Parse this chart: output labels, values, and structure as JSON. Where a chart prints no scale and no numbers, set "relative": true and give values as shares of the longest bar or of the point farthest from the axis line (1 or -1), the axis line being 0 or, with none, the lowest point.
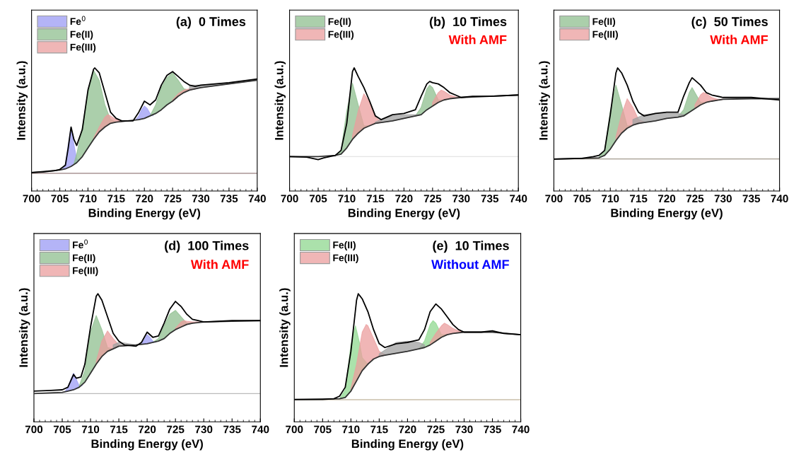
{
  "chart_data": [
    {
      "type": "area",
      "relative": true,
      "title": "(a)  0 Times",
      "xlabel": "Binding Energy (eV)",
      "ylabel": "Intensity (a.u.)",
      "xlim": [
        700,
        740
      ],
      "xticks": [
        700,
        705,
        710,
        715,
        720,
        725,
        730,
        735,
        740
      ],
      "tick_labels": "x",
      "legend": "top left",
      "ref_lines": [
        {
          "axis": "y",
          "value": 0.144,
          "color": "#806060"
        }
      ],
      "series": [
        {
          "type": "line",
          "color": "#333333",
          "x": [
            700,
            705,
            706,
            707,
            708,
            709,
            710,
            711,
            712,
            713,
            714,
            715,
            717,
            719,
            720,
            721,
            722,
            723,
            724,
            725,
            726,
            727,
            728,
            730,
            735,
            740
          ],
          "values": [
            0.15,
            0.17,
            0.18,
            0.2,
            0.23,
            0.28,
            0.35,
            0.42,
            0.48,
            0.52,
            0.55,
            0.56,
            0.57,
            0.58,
            0.59,
            0.61,
            0.63,
            0.66,
            0.7,
            0.73,
            0.77,
            0.8,
            0.82,
            0.84,
            0.87,
            0.9
          ]
        },
        {
          "name": "Fe$^{0}$",
          "color": "#9c9cf5",
          "x": [
            705.5,
            706,
            706.5,
            707,
            707.5,
            708,
            708.5,
            714,
            718.5,
            719,
            719.5,
            720,
            720.5,
            721,
            721.5
          ],
          "values": [
            0.175,
            0.22,
            0.38,
            0.52,
            0.38,
            0.26,
            0.25,
            null,
            0.58,
            0.61,
            0.66,
            0.69,
            0.67,
            0.63,
            0.61
          ]
        },
        {
          "name": "Fe(II)",
          "color": "#8fbf8f",
          "x": [
            707.5,
            708,
            709,
            710,
            711,
            712,
            713,
            714,
            715,
            718,
            721,
            722,
            723,
            724,
            725,
            726,
            727,
            728
          ],
          "values": [
            0.22,
            0.3,
            0.52,
            0.8,
            0.98,
            0.9,
            0.7,
            0.58,
            0.56,
            null,
            0.61,
            0.7,
            0.84,
            0.92,
            0.96,
            0.9,
            0.83,
            0.82
          ]
        },
        {
          "name": "Fe(III)",
          "color": "#eb9e9e",
          "x": [
            711,
            712,
            713,
            713.5,
            714,
            715,
            716,
            720,
            725,
            726,
            727,
            728,
            729
          ],
          "values": [
            0.43,
            0.52,
            0.6,
            0.62,
            0.61,
            0.58,
            0.565,
            null,
            0.74,
            0.79,
            0.82,
            0.83,
            0.835
          ]
        },
        {
          "color": "#a0a0a0",
          "x": [
            728,
            730,
            733,
            735,
            738,
            740
          ],
          "values": [
            0.86,
            0.86,
            0.87,
            0.88,
            0.89,
            0.91
          ]
        },
        {
          "type": "line",
          "color": "#000000",
          "x": [
            700,
            702,
            704,
            705,
            706,
            706.5,
            707,
            707.5,
            708,
            709,
            710,
            711,
            711.2,
            712,
            713,
            714,
            715,
            716,
            718,
            719,
            720,
            721,
            722,
            723,
            724,
            725,
            726,
            727,
            728,
            729,
            730,
            735,
            740
          ],
          "values": [
            0.15,
            0.155,
            0.165,
            0.175,
            0.21,
            0.35,
            0.52,
            0.42,
            0.37,
            0.5,
            0.82,
            0.99,
            1,
            0.96,
            0.8,
            0.64,
            0.59,
            0.57,
            0.57,
            0.64,
            0.73,
            0.7,
            0.74,
            0.86,
            0.94,
            0.97,
            0.93,
            0.89,
            0.86,
            0.85,
            0.86,
            0.88,
            0.91
          ]
        }
      ]
    },
    {
      "type": "area",
      "relative": true,
      "title": "(b)  10 Times",
      "annotations": [
        "With AMF"
      ],
      "xlabel": "Binding Energy (eV)",
      "ylabel": "Intensity (a.u.)",
      "xlim": [
        700,
        740
      ],
      "xticks": [
        700,
        705,
        710,
        715,
        720,
        725,
        730,
        735,
        740
      ],
      "tick_labels": "x",
      "legend": "top left",
      "ref_lines": [
        {
          "axis": "y",
          "value": 0.28,
          "color": "#dddddd"
        }
      ],
      "series": [
        {
          "type": "line",
          "color": "#333333",
          "x": [
            700,
            705,
            708,
            709,
            710,
            711,
            712,
            713,
            714,
            715,
            718,
            720,
            722,
            723,
            724,
            725,
            726,
            727,
            728,
            730,
            735,
            740
          ],
          "values": [
            0.28,
            0.28,
            0.29,
            0.3,
            0.35,
            0.42,
            0.47,
            0.51,
            0.53,
            0.55,
            0.57,
            0.59,
            0.61,
            0.62,
            0.66,
            0.69,
            0.72,
            0.74,
            0.75,
            0.76,
            0.77,
            0.78
          ]
        },
        {
          "name": "Fe(II)",
          "color": "#8fbf8f",
          "x": [
            708,
            709,
            710,
            711,
            712,
            713,
            714,
            718,
            722,
            723,
            724,
            724.5,
            725,
            726,
            727
          ],
          "values": [
            0.29,
            0.33,
            0.65,
            0.875,
            0.7,
            0.53,
            0.53,
            null,
            0.61,
            0.68,
            0.83,
            0.86,
            0.84,
            0.74,
            0.74
          ]
        },
        {
          "name": "Fe(III)",
          "color": "#eb9e9e",
          "x": [
            711,
            712,
            713,
            714,
            715,
            716,
            720,
            725,
            726,
            726.5,
            727,
            728,
            729,
            730
          ],
          "values": [
            0.45,
            0.65,
            0.79,
            0.72,
            0.6,
            0.565,
            null,
            0.72,
            0.8,
            0.82,
            0.81,
            0.78,
            0.765,
            0.76
          ]
        },
        {
          "color": "#a0a0a0",
          "x": [
            715,
            716,
            718,
            720,
            722,
            723
          ],
          "values": [
            0.56,
            0.58,
            0.61,
            0.62,
            0.62,
            0.62
          ]
        },
        {
          "type": "line",
          "color": "#000000",
          "x": [
            700,
            703,
            705,
            706,
            708,
            709,
            710,
            711,
            711.3,
            712,
            713,
            714,
            715,
            716,
            718,
            720,
            722,
            723,
            724,
            724.5,
            725,
            726,
            727,
            728,
            729,
            730,
            732,
            735,
            740
          ],
          "values": [
            0.28,
            0.275,
            0.255,
            0.27,
            0.29,
            0.33,
            0.55,
            0.97,
            1,
            0.93,
            0.84,
            0.73,
            0.61,
            0.58,
            0.62,
            0.63,
            0.66,
            0.77,
            0.87,
            0.89,
            0.88,
            0.87,
            0.84,
            0.8,
            0.78,
            0.76,
            0.77,
            0.77,
            0.78
          ]
        }
      ]
    },
    {
      "type": "area",
      "relative": true,
      "title": "(c)  50 Times",
      "annotations": [
        "With AMF"
      ],
      "xlabel": "Binding Energy (eV)",
      "ylabel": "Intensity (a.u.)",
      "xlim": [
        700,
        740
      ],
      "xticks": [
        700,
        705,
        710,
        715,
        720,
        725,
        730,
        735,
        740
      ],
      "tick_labels": "x",
      "legend": "top left",
      "ref_lines": [
        {
          "axis": "y",
          "value": 0.26,
          "color": "#8a8070"
        }
      ],
      "series": [
        {
          "type": "line",
          "color": "#333333",
          "x": [
            700,
            708,
            709,
            710,
            711,
            712,
            713,
            714,
            715,
            718,
            720,
            722,
            723,
            724,
            725,
            726,
            727,
            728,
            730,
            735,
            740
          ],
          "values": [
            0.26,
            0.27,
            0.29,
            0.34,
            0.41,
            0.47,
            0.51,
            0.535,
            0.55,
            0.57,
            0.59,
            0.6,
            0.61,
            0.64,
            0.67,
            0.7,
            0.72,
            0.73,
            0.745,
            0.75,
            0.75
          ]
        },
        {
          "name": "Fe(II)",
          "color": "#8fbf8f",
          "x": [
            708,
            709,
            710,
            711,
            712,
            713,
            714,
            718,
            722,
            723,
            724,
            724.5,
            725,
            726,
            727
          ],
          "values": [
            0.275,
            0.33,
            0.65,
            0.86,
            0.7,
            0.53,
            0.535,
            null,
            0.605,
            0.66,
            0.8,
            0.84,
            0.8,
            0.72,
            0.72
          ]
        },
        {
          "name": "Fe(III)",
          "color": "#eb9e9e",
          "x": [
            711,
            712,
            713,
            714,
            715,
            716,
            720,
            725,
            726,
            726.5,
            727,
            728,
            729,
            730
          ],
          "values": [
            0.44,
            0.62,
            0.75,
            0.68,
            0.58,
            0.56,
            null,
            0.7,
            0.78,
            0.8,
            0.79,
            0.76,
            0.745,
            0.745
          ]
        },
        {
          "color": "#a0a0a0",
          "x": [
            714,
            716,
            718,
            720,
            722,
            723
          ],
          "values": [
            0.58,
            0.62,
            0.63,
            0.63,
            0.63,
            0.62
          ]
        },
        {
          "type": "line",
          "color": "#000000",
          "x": [
            700,
            705,
            707,
            708,
            709,
            710,
            711,
            711.3,
            712,
            713,
            714,
            715,
            716,
            718,
            720,
            722,
            723,
            724,
            724.5,
            725,
            726,
            727,
            728,
            730,
            735,
            740
          ],
          "values": [
            0.26,
            0.265,
            0.28,
            0.29,
            0.33,
            0.62,
            0.96,
            1,
            0.96,
            0.86,
            0.73,
            0.64,
            0.61,
            0.63,
            0.64,
            0.64,
            0.77,
            0.88,
            0.92,
            0.9,
            0.86,
            0.8,
            0.78,
            0.76,
            0.76,
            0.74
          ]
        }
      ]
    },
    {
      "type": "area",
      "relative": true,
      "title": "(d)  100 Times",
      "annotations": [
        "With AMF"
      ],
      "xlabel": "Binding Energy (eV)",
      "ylabel": "Intensity (a.u.)",
      "xlim": [
        700,
        740
      ],
      "xticks": [
        700,
        705,
        710,
        715,
        720,
        725,
        730,
        735,
        740
      ],
      "tick_labels": "x",
      "legend": "top left",
      "ref_lines": [
        {
          "axis": "y",
          "value": 0.22,
          "color": "#bbbbbb"
        }
      ],
      "series": [
        {
          "type": "line",
          "color": "#333333",
          "x": [
            700,
            705,
            706,
            707,
            708,
            709,
            710,
            711,
            712,
            713,
            714,
            715,
            718,
            720,
            722,
            723,
            724,
            725,
            726,
            727,
            728,
            730,
            735,
            740
          ],
          "values": [
            0.22,
            0.23,
            0.24,
            0.25,
            0.27,
            0.31,
            0.38,
            0.45,
            0.51,
            0.55,
            0.57,
            0.59,
            0.6,
            0.61,
            0.63,
            0.65,
            0.69,
            0.72,
            0.74,
            0.76,
            0.77,
            0.78,
            0.785,
            0.79
          ]
        },
        {
          "name": "Fe$^{0}$",
          "color": "#9c9cf5",
          "x": [
            705.5,
            706,
            706.5,
            707,
            707.5,
            708,
            708.5,
            714,
            719,
            719.5,
            720,
            720.5,
            721,
            721.5
          ],
          "values": [
            0.235,
            0.27,
            0.33,
            0.38,
            0.33,
            0.28,
            0.28,
            null,
            0.61,
            0.64,
            0.68,
            0.66,
            0.63,
            0.62
          ]
        },
        {
          "name": "Fe(II)",
          "color": "#8fbf8f",
          "x": [
            708,
            709,
            710,
            711,
            712,
            713,
            714,
            718,
            721,
            722,
            723,
            724,
            725,
            726,
            727,
            728
          ],
          "values": [
            0.28,
            0.4,
            0.7,
            0.83,
            0.72,
            0.58,
            0.57,
            null,
            0.62,
            0.65,
            0.75,
            0.84,
            0.87,
            0.82,
            0.77,
            0.77
          ]
        },
        {
          "name": "Fe(III)",
          "color": "#eb9e9e",
          "x": [
            711,
            712,
            713,
            714,
            715,
            716,
            720,
            725,
            726,
            726.5,
            727,
            728,
            729,
            730
          ],
          "values": [
            0.47,
            0.63,
            0.71,
            0.65,
            0.6,
            0.595,
            null,
            0.73,
            0.78,
            0.79,
            0.785,
            0.78,
            0.78,
            0.78
          ]
        },
        {
          "color": "#a0a0a0",
          "x": [
            714,
            715,
            716,
            718,
            719
          ],
          "values": [
            0.6,
            0.62,
            0.615,
            0.6,
            0.61
          ]
        },
        {
          "type": "line",
          "color": "#000000",
          "x": [
            700,
            703,
            705,
            706,
            707,
            707.5,
            708.3,
            709,
            710,
            711,
            711.3,
            712,
            713,
            714,
            715,
            716,
            718,
            719,
            720,
            721,
            722,
            723,
            724,
            725,
            726,
            727,
            728,
            729,
            730,
            735,
            740
          ],
          "values": [
            0.24,
            0.245,
            0.25,
            0.27,
            0.37,
            0.34,
            0.35,
            0.45,
            0.74,
            0.98,
            1,
            0.95,
            0.82,
            0.69,
            0.63,
            0.6,
            0.59,
            0.62,
            0.7,
            0.66,
            0.67,
            0.77,
            0.88,
            0.94,
            0.9,
            0.84,
            0.8,
            0.79,
            0.78,
            0.79,
            0.79
          ]
        }
      ]
    },
    {
      "type": "area",
      "relative": true,
      "title": "(e)  10 Times",
      "annotations": [
        "Without AMF"
      ],
      "xlabel": "Binding Energy (eV)",
      "ylabel": "Intensity (a.u.)",
      "xlim": [
        700,
        740
      ],
      "xticks": [
        700,
        705,
        710,
        715,
        720,
        725,
        730,
        735,
        740
      ],
      "tick_labels": "x",
      "legend": "top left",
      "ref_lines": [
        {
          "axis": "y",
          "value": 0.173,
          "color": "#b0a080"
        }
      ],
      "series": [
        {
          "type": "line",
          "color": "#333333",
          "x": [
            700,
            708,
            709,
            710,
            711,
            712,
            713,
            714,
            715,
            716,
            718,
            720,
            722,
            723,
            724,
            725,
            726,
            727,
            728,
            730,
            735,
            740
          ],
          "values": [
            0.173,
            0.18,
            0.19,
            0.24,
            0.32,
            0.4,
            0.45,
            0.49,
            0.51,
            0.52,
            0.535,
            0.55,
            0.57,
            0.58,
            0.6,
            0.63,
            0.66,
            0.68,
            0.69,
            0.7,
            0.7,
            0.68
          ]
        },
        {
          "name": "Fe(II)",
          "color": "#8fd88f",
          "x": [
            708,
            709,
            710,
            710.8,
            711.5,
            712,
            713,
            714,
            718,
            722,
            723,
            724,
            724.5,
            725,
            726,
            727
          ],
          "values": [
            0.18,
            0.25,
            0.6,
            0.75,
            0.62,
            0.5,
            0.45,
            0.49,
            null,
            0.57,
            0.63,
            0.76,
            0.79,
            0.77,
            0.68,
            0.68
          ]
        },
        {
          "name": "Fe(III)",
          "color": "#eb9e9e",
          "x": [
            710,
            711,
            712,
            712.7,
            713,
            714,
            715,
            716,
            720,
            724,
            725,
            726,
            726.5,
            727,
            728,
            729,
            730
          ],
          "values": [
            0.26,
            0.45,
            0.7,
            0.76,
            0.75,
            0.65,
            0.55,
            0.525,
            null,
            0.62,
            0.69,
            0.75,
            0.77,
            0.76,
            0.73,
            0.71,
            0.7
          ]
        },
        {
          "color": "#a0a0a0",
          "x": [
            715,
            716,
            718,
            720,
            722,
            723
          ],
          "values": [
            0.53,
            0.56,
            0.62,
            0.63,
            0.62,
            0.6
          ]
        },
        {
          "type": "line",
          "color": "#000000",
          "x": [
            700,
            705,
            707,
            708,
            709,
            710,
            711,
            711.3,
            712,
            713,
            714,
            715,
            716,
            718,
            720,
            722,
            723,
            724,
            725,
            726,
            727,
            728,
            729,
            730,
            733,
            735,
            737,
            740
          ],
          "values": [
            0.175,
            0.175,
            0.18,
            0.2,
            0.27,
            0.55,
            0.95,
            1,
            0.96,
            0.86,
            0.72,
            0.61,
            0.58,
            0.61,
            0.62,
            0.64,
            0.72,
            0.86,
            0.92,
            0.88,
            0.82,
            0.76,
            0.72,
            0.7,
            0.7,
            0.71,
            0.69,
            0.68
          ]
        }
      ]
    }
  ]
}
